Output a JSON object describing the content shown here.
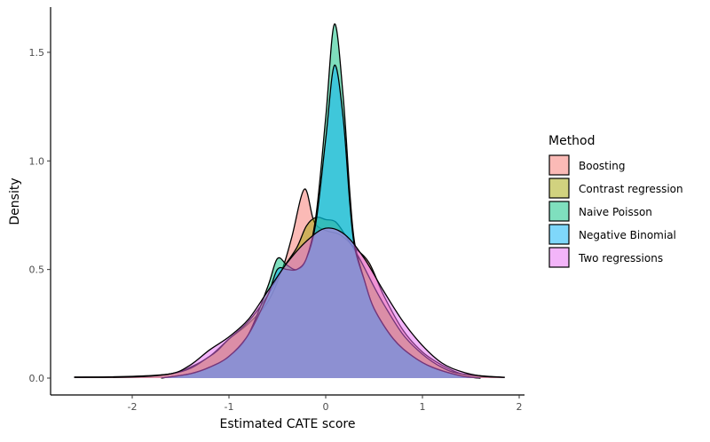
{
  "chart_data": {
    "type": "area",
    "subtype": "density",
    "title": "",
    "xlabel": "Estimated CATE score",
    "ylabel": "Density",
    "xlim": [
      -2.75,
      2.05
    ],
    "ylim": [
      0,
      1.71
    ],
    "xticks": [
      -2,
      -1,
      0,
      1,
      2
    ],
    "xtick_labels": [
      "-2",
      "-1",
      "0",
      "1",
      "2"
    ],
    "yticks": [
      0,
      0.5,
      1.0,
      1.5
    ],
    "ytick_labels": [
      "0.0",
      "0.5",
      "1.0",
      "1.5"
    ],
    "grid": false,
    "fill_alpha": 0.5,
    "legend": {
      "title": "Method",
      "position": "right"
    },
    "series": [
      {
        "name": "Boosting",
        "color": "#F8766D",
        "x": [
          -2.6,
          -2.0,
          -1.6,
          -1.4,
          -1.2,
          -1.0,
          -0.8,
          -0.6,
          -0.45,
          -0.35,
          -0.22,
          -0.12,
          0.0,
          0.15,
          0.3,
          0.45,
          0.6,
          0.8,
          1.0,
          1.2,
          1.4,
          1.6,
          1.85
        ],
        "y": [
          0.005,
          0.006,
          0.02,
          0.05,
          0.1,
          0.18,
          0.25,
          0.35,
          0.5,
          0.65,
          0.87,
          0.72,
          0.68,
          0.66,
          0.6,
          0.53,
          0.38,
          0.22,
          0.12,
          0.06,
          0.02,
          0.008,
          0.004
        ]
      },
      {
        "name": "Contrast regression",
        "color": "#A3A500",
        "x": [
          -2.6,
          -1.6,
          -1.2,
          -1.0,
          -0.8,
          -0.6,
          -0.45,
          -0.3,
          -0.2,
          -0.1,
          0.0,
          0.1,
          0.2,
          0.35,
          0.5,
          0.6,
          0.8,
          1.0,
          1.2,
          1.4,
          1.85
        ],
        "y": [
          0.003,
          0.02,
          0.1,
          0.18,
          0.26,
          0.38,
          0.5,
          0.6,
          0.7,
          0.74,
          0.73,
          0.72,
          0.66,
          0.55,
          0.42,
          0.34,
          0.2,
          0.11,
          0.05,
          0.02,
          0.003
        ]
      },
      {
        "name": "Naive Poisson",
        "color": "#00BF7D",
        "x": [
          -1.7,
          -1.4,
          -1.2,
          -1.0,
          -0.8,
          -0.6,
          -0.5,
          -0.4,
          -0.3,
          -0.2,
          -0.1,
          0.0,
          0.09,
          0.18,
          0.25,
          0.3,
          0.4,
          0.5,
          0.7,
          0.9,
          1.1,
          1.4,
          1.6
        ],
        "y": [
          0.0,
          0.02,
          0.05,
          0.1,
          0.2,
          0.42,
          0.55,
          0.52,
          0.5,
          0.55,
          0.75,
          1.2,
          1.63,
          1.3,
          0.85,
          0.62,
          0.45,
          0.32,
          0.18,
          0.1,
          0.05,
          0.01,
          0.0
        ]
      },
      {
        "name": "Negative Binomial",
        "color": "#00B0F6",
        "x": [
          -1.7,
          -1.4,
          -1.2,
          -1.0,
          -0.8,
          -0.6,
          -0.5,
          -0.4,
          -0.3,
          -0.2,
          -0.1,
          0.0,
          0.09,
          0.18,
          0.25,
          0.3,
          0.4,
          0.5,
          0.7,
          0.9,
          1.1,
          1.4,
          1.6
        ],
        "y": [
          0.0,
          0.02,
          0.05,
          0.1,
          0.2,
          0.38,
          0.5,
          0.5,
          0.5,
          0.55,
          0.72,
          1.1,
          1.44,
          1.2,
          0.8,
          0.6,
          0.45,
          0.32,
          0.18,
          0.1,
          0.05,
          0.01,
          0.0
        ]
      },
      {
        "name": "Two regressions",
        "color": "#E76BF3",
        "x": [
          -2.6,
          -2.0,
          -1.6,
          -1.4,
          -1.2,
          -1.0,
          -0.8,
          -0.6,
          -0.4,
          -0.2,
          0.0,
          0.2,
          0.4,
          0.6,
          0.8,
          1.0,
          1.2,
          1.4,
          1.6,
          1.85
        ],
        "y": [
          0.003,
          0.005,
          0.02,
          0.06,
          0.13,
          0.19,
          0.27,
          0.4,
          0.53,
          0.63,
          0.69,
          0.66,
          0.55,
          0.4,
          0.26,
          0.15,
          0.07,
          0.03,
          0.01,
          0.003
        ]
      }
    ]
  }
}
